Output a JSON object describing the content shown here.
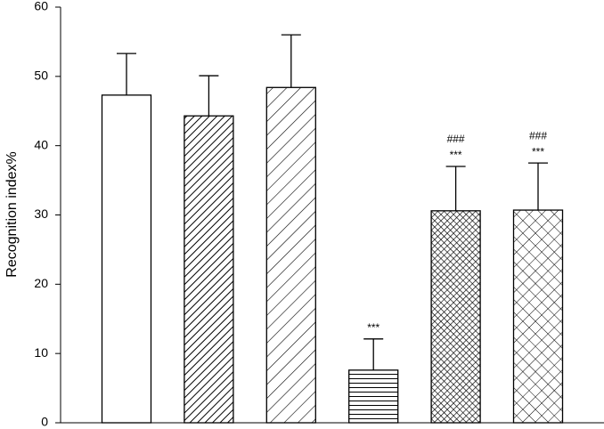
{
  "chart_data": {
    "type": "bar",
    "y_label": "Recognition  index%",
    "categories": [
      null,
      null,
      null,
      null,
      null,
      null
    ],
    "values": [
      47.3,
      44.3,
      48.4,
      7.6,
      30.6,
      30.7
    ],
    "errors": [
      6.0,
      5.8,
      7.6,
      4.5,
      6.4,
      6.8
    ],
    "patterns": [
      "none",
      "diagonal-dense",
      "diagonal",
      "horizontal",
      "crosshatch-dense",
      "crosshatch"
    ],
    "color": "#000000",
    "annotations": [
      null,
      null,
      null,
      [
        "***"
      ],
      [
        "###",
        "***"
      ],
      [
        "###",
        "***"
      ]
    ],
    "ylim": [
      0,
      60
    ],
    "yticks": [
      0,
      10,
      20,
      30,
      40,
      50,
      60
    ],
    "grid": false
  }
}
